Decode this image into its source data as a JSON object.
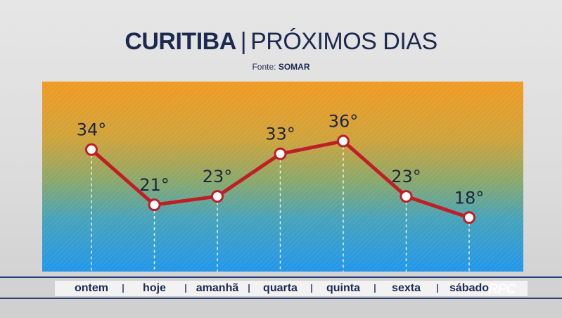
{
  "header": {
    "city": "CURITIBA",
    "separator": "|",
    "subtitle": "PRÓXIMOS DIAS",
    "source_prefix": "Fonte:",
    "source_name": "SOMAR"
  },
  "chart_data": {
    "type": "line",
    "categories": [
      "ontem",
      "hoje",
      "amanhã",
      "quarta",
      "quinta",
      "sexta",
      "sábado"
    ],
    "series": [
      {
        "values": [
          34,
          21,
          23,
          33,
          36,
          23,
          18
        ]
      }
    ],
    "value_labels": [
      "34°",
      "21°",
      "23°",
      "33°",
      "36°",
      "23°",
      "18°"
    ],
    "ylim": [
      0,
      50
    ],
    "grid": false,
    "colors": {
      "line": "#bf1e24",
      "marker_fill": "#ffffff",
      "gradient_top": "#f09a22",
      "gradient_bottom": "#2196ea"
    }
  },
  "branding": {
    "logo_text": "RPC",
    "logo_name": "rpc-logo"
  }
}
